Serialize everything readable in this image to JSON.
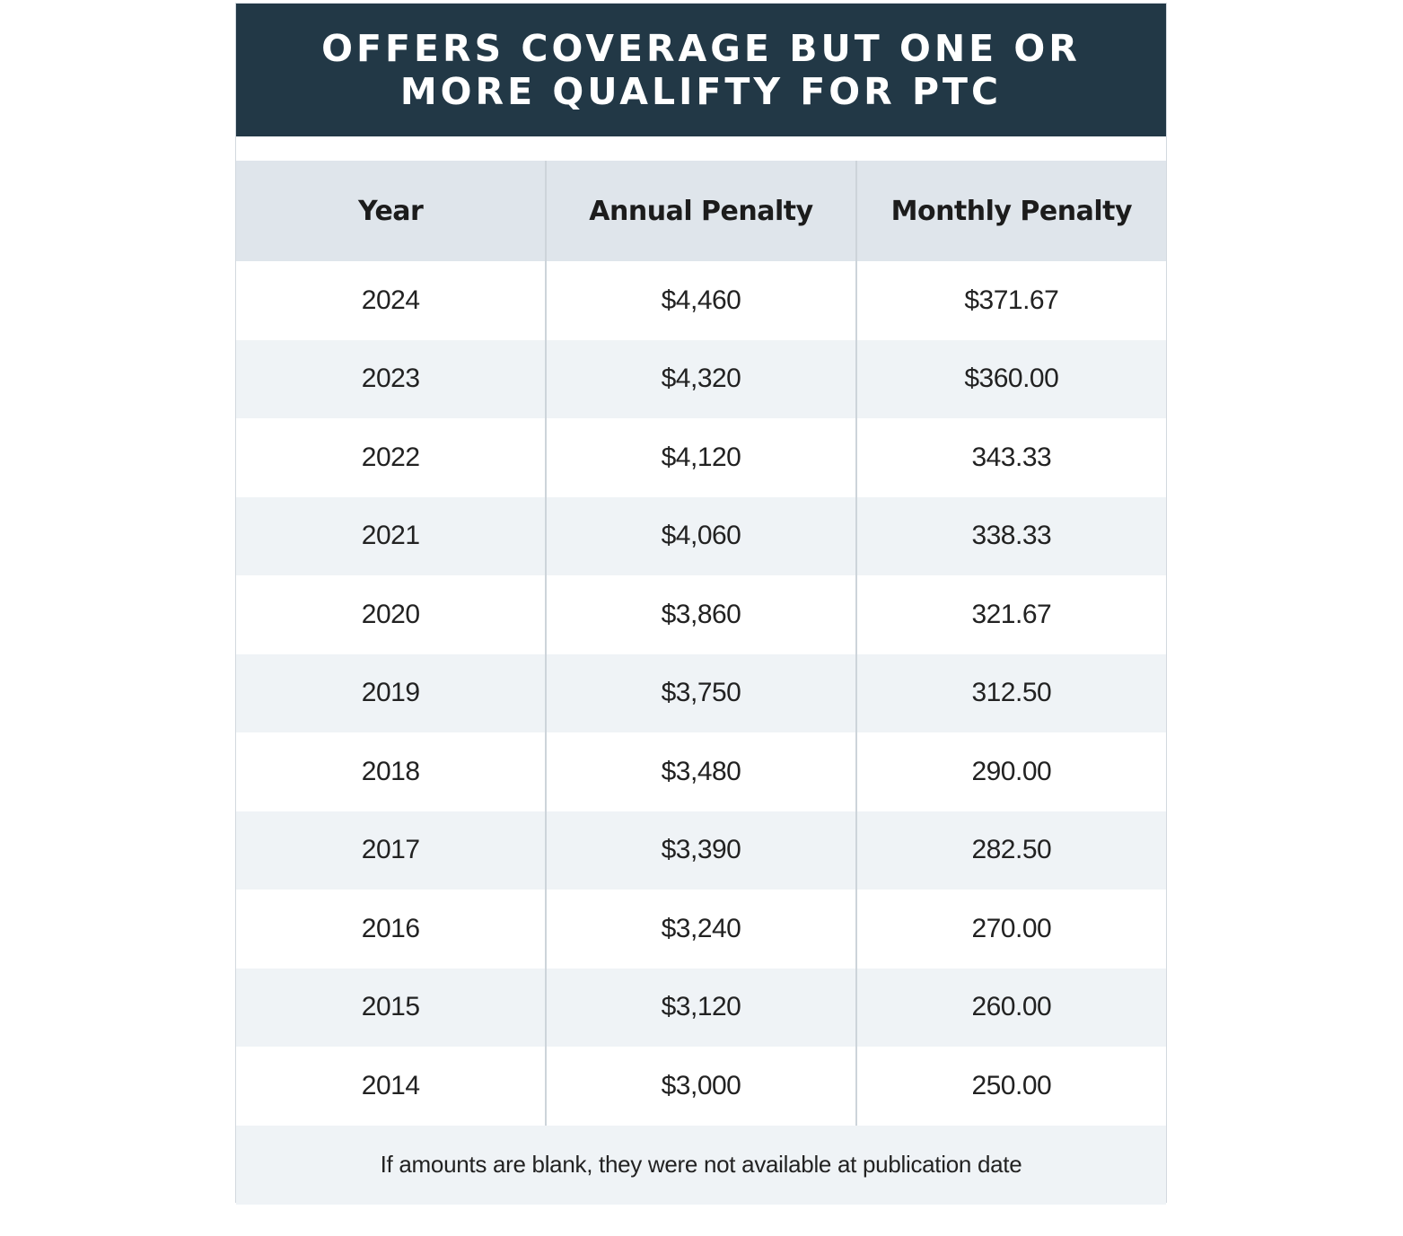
{
  "title": "OFFERS COVERAGE BUT ONE OR MORE QUALIFTY FOR PTC",
  "table": {
    "headers": [
      "Year",
      "Annual Penalty",
      "Monthly Penalty"
    ],
    "rows": [
      [
        "2024",
        "$4,460",
        "$371.67"
      ],
      [
        "2023",
        "$4,320",
        "$360.00"
      ],
      [
        "2022",
        "$4,120",
        "343.33"
      ],
      [
        "2021",
        "$4,060",
        "338.33"
      ],
      [
        "2020",
        "$3,860",
        "321.67"
      ],
      [
        "2019",
        "$3,750",
        "312.50"
      ],
      [
        "2018",
        "$3,480",
        "290.00"
      ],
      [
        "2017",
        "$3,390",
        "282.50"
      ],
      [
        "2016",
        "$3,240",
        "270.00"
      ],
      [
        "2015",
        "$3,120",
        "260.00"
      ],
      [
        "2014",
        "$3,000",
        "250.00"
      ]
    ],
    "footnote": "If amounts are blank, they were not available at publication date"
  },
  "colors": {
    "title_bg": "#223846",
    "header_bg": "#dfe5eb",
    "stripe_bg": "#eff3f6",
    "divider": "#cdd4da"
  }
}
